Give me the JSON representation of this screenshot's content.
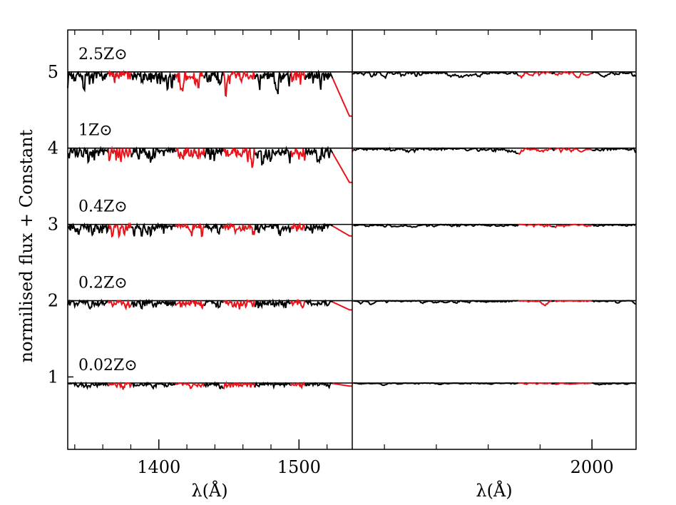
{
  "chart_data": {
    "type": "line",
    "ylabel": "normilised flux + Constant",
    "y_ticks": [
      1,
      2,
      3,
      4,
      5
    ],
    "ylim": [
      0.05,
      5.55
    ],
    "grid": false,
    "legend": "none",
    "colors": {
      "line": "#000000",
      "highlight": "#e8141c",
      "frame": "#000000"
    },
    "panels": [
      {
        "xlabel": "λ(Å)",
        "xlim": [
          1335,
          1538
        ],
        "x_ticks": [
          1400,
          1500
        ],
        "x_tick_labels": [
          "1400",
          "1500"
        ]
      },
      {
        "xlabel": "λ(Å)",
        "xlim": [
          1538,
          2085
        ],
        "x_ticks": [
          2000
        ],
        "x_tick_labels": [
          "2000"
        ]
      }
    ],
    "series": [
      {
        "name": "2.5Z⊙",
        "baseline": 5.0,
        "depth": 1.0,
        "drop_to": 4.42
      },
      {
        "name": "1Z⊙",
        "baseline": 4.0,
        "depth": 0.85,
        "drop_to": 3.55
      },
      {
        "name": "0.4Z⊙",
        "baseline": 3.0,
        "depth": 0.6,
        "drop_to": 2.85
      },
      {
        "name": "0.2Z⊙",
        "baseline": 2.0,
        "depth": 0.5,
        "drop_to": 1.88
      },
      {
        "name": "0.02Z⊙",
        "baseline": 0.92,
        "depth": 0.3,
        "drop_to": 0.88
      }
    ],
    "highlight_windows": [
      [
        1364,
        1380
      ],
      [
        1412,
        1432
      ],
      [
        1446,
        1468
      ],
      [
        1494,
        1504
      ],
      [
        1524,
        1538
      ],
      [
        1858,
        1920
      ],
      [
        1928,
        1998
      ]
    ]
  }
}
